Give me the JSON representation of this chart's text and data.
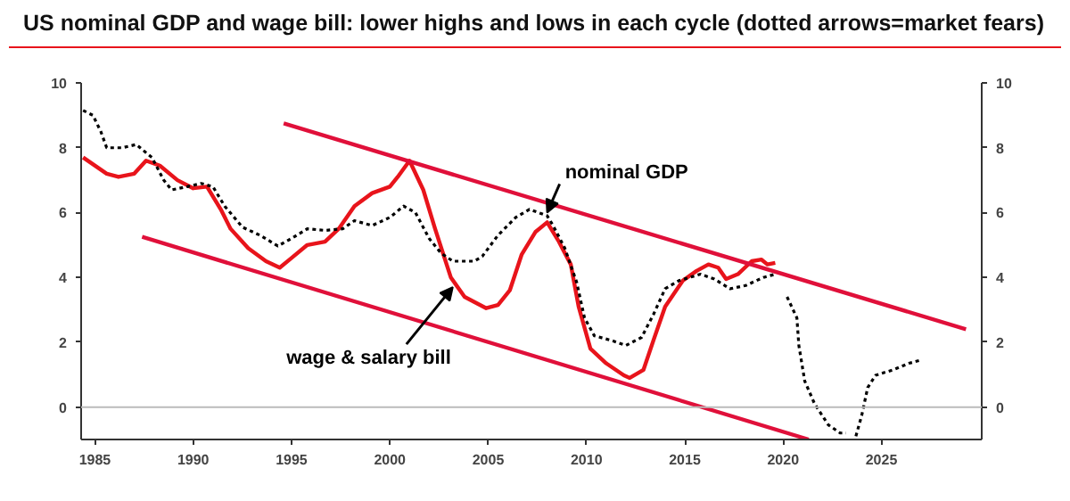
{
  "chart_data": {
    "type": "line",
    "title": "US nominal GDP and wage bill: lower highs and lows in each cycle (dotted arrows=market fears)",
    "xlim": [
      1984.3,
      2030.1
    ],
    "xticks": [
      1985,
      1990,
      1995,
      2000,
      2005,
      2010,
      2015,
      2020,
      2025
    ],
    "ylim": [
      -1,
      10
    ],
    "yticks": [
      0,
      2,
      4,
      6,
      8,
      10
    ],
    "y2lim": [
      -1,
      10
    ],
    "y2ticks": [
      0,
      2,
      4,
      6,
      8,
      10
    ],
    "grid": false,
    "marker": "none",
    "ref_lines": [
      {
        "axis": "y",
        "value": 0,
        "color": "#bbbbbb"
      }
    ],
    "annotations": [
      {
        "text": "nominal GDP",
        "x": 2008.0,
        "y": 6.0
      },
      {
        "text": "wage & salary bill",
        "x": 2003.2,
        "y": 3.7
      }
    ],
    "series": [
      {
        "color": "#e8141b",
        "line_style": "solid",
        "x": [
          1984.4,
          1985.6,
          1986.2,
          1987.0,
          1987.6,
          1988.3,
          1989.2,
          1990.0,
          1990.7,
          1991.4,
          1991.9,
          1992.8,
          1993.7,
          1994.4,
          1995.0,
          1995.8,
          1996.7,
          1997.4,
          1998.2,
          1999.1,
          2000.0,
          2000.4,
          2001.0,
          2001.7,
          2002.3,
          2003.1,
          2003.8,
          2004.9,
          2005.5,
          2006.1,
          2006.7,
          2007.4,
          2008.0,
          2008.6,
          2009.2,
          2009.6,
          2010.2,
          2011.0,
          2011.9,
          2012.2,
          2012.9,
          2013.4,
          2014.0,
          2014.9,
          2015.6,
          2016.2,
          2016.7,
          2017.1,
          2017.7,
          2018.4,
          2018.9,
          2019.2,
          2019.6
        ],
        "values": [
          7.7,
          7.2,
          7.1,
          7.2,
          7.6,
          7.45,
          7.0,
          6.75,
          6.8,
          6.1,
          5.5,
          4.9,
          4.5,
          4.3,
          4.6,
          5.0,
          5.1,
          5.5,
          6.2,
          6.6,
          6.8,
          7.1,
          7.6,
          6.7,
          5.5,
          4.0,
          3.4,
          3.05,
          3.15,
          3.6,
          4.7,
          5.4,
          5.7,
          5.1,
          4.4,
          3.1,
          1.8,
          1.35,
          0.98,
          0.9,
          1.15,
          2.05,
          3.1,
          3.9,
          4.2,
          4.4,
          4.3,
          3.95,
          4.1,
          4.5,
          4.55,
          4.4,
          4.45
        ]
      },
      {
        "color": "#000000",
        "line_style": "dotted",
        "x": [
          1984.4,
          1984.9,
          1985.3,
          1985.6,
          1986.4,
          1987.1,
          1987.9,
          1988.5,
          1988.9,
          1989.7,
          1990.4,
          1991.0,
          1991.6,
          1992.5,
          1993.4,
          1994.3,
          1995.0,
          1995.8,
          1996.7,
          1997.6,
          1998.2,
          1999.1,
          2000.0,
          2000.7,
          2001.3,
          2002.0,
          2002.6,
          2003.2,
          2004.3,
          2004.7,
          2005.5,
          2006.4,
          2007.1,
          2008.0,
          2008.3,
          2008.9,
          2009.5,
          2009.9,
          2010.4,
          2011.3,
          2012.0,
          2012.8,
          2013.4,
          2014.0,
          2014.7,
          2015.8,
          2016.5,
          2017.3,
          2018.1,
          2019.0,
          2019.6
        ],
        "values": [
          9.15,
          9.0,
          8.5,
          8.0,
          8.0,
          8.1,
          7.7,
          7.0,
          6.7,
          6.8,
          6.9,
          6.8,
          6.2,
          5.55,
          5.3,
          4.97,
          5.2,
          5.5,
          5.45,
          5.5,
          5.75,
          5.6,
          5.85,
          6.2,
          6.0,
          5.2,
          4.75,
          4.5,
          4.5,
          4.65,
          5.3,
          5.85,
          6.1,
          5.9,
          5.6,
          4.9,
          3.85,
          2.75,
          2.2,
          2.05,
          1.9,
          2.15,
          2.85,
          3.65,
          3.9,
          4.1,
          3.95,
          3.65,
          3.75,
          4.0,
          4.1
        ]
      },
      {
        "color": "#e0103a",
        "line_style": "solid",
        "x": [
          1994.6,
          2029.3
        ],
        "values": [
          8.75,
          2.4
        ]
      },
      {
        "color": "#e0103a",
        "line_style": "solid",
        "x": [
          1987.4,
          2021.3
        ],
        "values": [
          5.25,
          -1.0
        ]
      },
      {
        "color": "#000000",
        "line_style": "dotted",
        "x": [
          2020.2,
          2020.7,
          2020.8,
          2021.1,
          2021.6,
          2022.3,
          2022.9,
          2023.2
        ],
        "values": [
          3.4,
          2.75,
          1.9,
          0.8,
          0.1,
          -0.55,
          -0.8,
          -0.8
        ]
      },
      {
        "color": "#000000",
        "line_style": "dotted",
        "x": [
          2023.7,
          2024.0,
          2024.3,
          2024.7,
          2025.6,
          2026.4,
          2027.0
        ],
        "values": [
          -0.9,
          -0.25,
          0.6,
          0.98,
          1.15,
          1.35,
          1.45
        ]
      }
    ]
  }
}
